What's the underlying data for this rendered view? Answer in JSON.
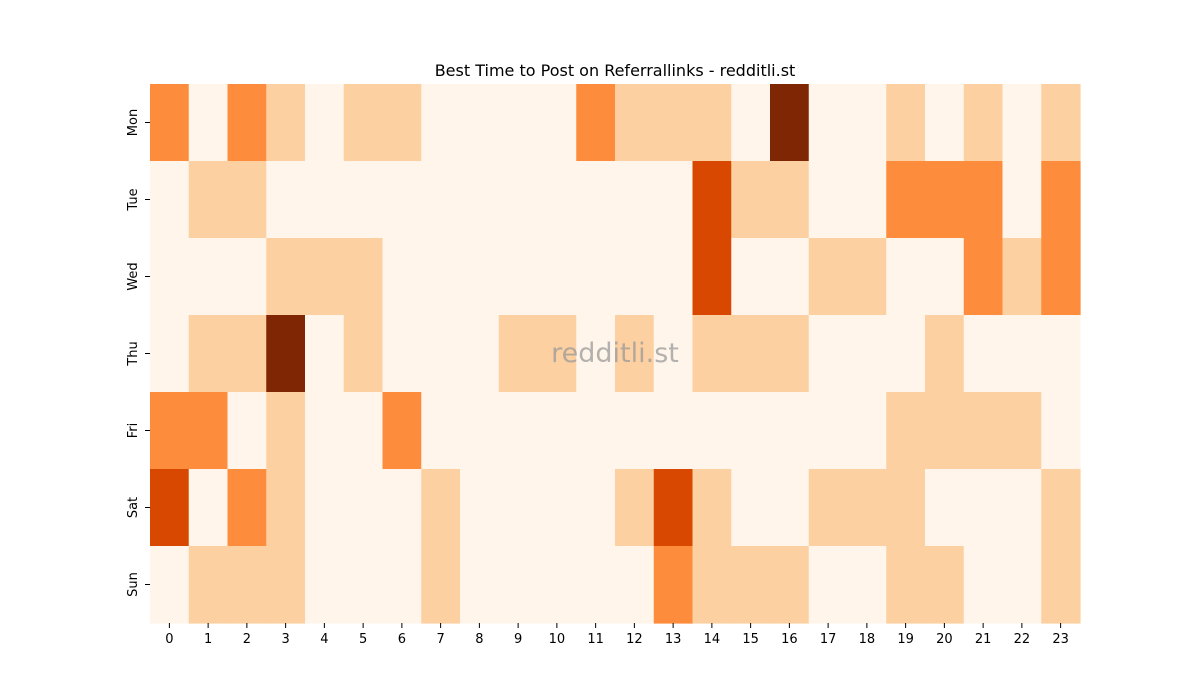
{
  "chart_data": {
    "type": "heatmap",
    "title": "Best Time to Post on Referrallinks - redditli.st",
    "watermark": "redditli.st",
    "xlabel": "",
    "ylabel": "",
    "x": [
      "0",
      "1",
      "2",
      "3",
      "4",
      "5",
      "6",
      "7",
      "8",
      "9",
      "10",
      "11",
      "12",
      "13",
      "14",
      "15",
      "16",
      "17",
      "18",
      "19",
      "20",
      "21",
      "22",
      "23"
    ],
    "y": [
      "Mon",
      "Tue",
      "Wed",
      "Thu",
      "Fri",
      "Sat",
      "Sun"
    ],
    "values": [
      [
        2,
        0,
        2,
        1,
        0,
        1,
        1,
        0,
        0,
        0,
        0,
        2,
        1,
        1,
        1,
        0,
        4,
        0,
        0,
        1,
        0,
        1,
        0,
        1
      ],
      [
        0,
        1,
        1,
        0,
        0,
        0,
        0,
        0,
        0,
        0,
        0,
        0,
        0,
        0,
        3,
        1,
        1,
        0,
        0,
        2,
        2,
        2,
        0,
        2
      ],
      [
        0,
        0,
        0,
        1,
        1,
        1,
        0,
        0,
        0,
        0,
        0,
        0,
        0,
        0,
        3,
        0,
        0,
        1,
        1,
        0,
        0,
        2,
        1,
        2
      ],
      [
        0,
        1,
        1,
        4,
        0,
        1,
        0,
        0,
        0,
        1,
        1,
        0,
        1,
        0,
        1,
        1,
        1,
        0,
        0,
        0,
        1,
        0,
        0,
        0
      ],
      [
        2,
        2,
        0,
        1,
        0,
        0,
        2,
        0,
        0,
        0,
        0,
        0,
        0,
        0,
        0,
        0,
        0,
        0,
        0,
        1,
        1,
        1,
        1,
        0
      ],
      [
        3,
        0,
        2,
        1,
        0,
        0,
        0,
        1,
        0,
        0,
        0,
        0,
        1,
        3,
        1,
        0,
        0,
        1,
        1,
        1,
        0,
        0,
        0,
        1
      ],
      [
        0,
        1,
        1,
        1,
        0,
        0,
        0,
        1,
        0,
        0,
        0,
        0,
        0,
        2,
        1,
        1,
        1,
        0,
        0,
        1,
        1,
        0,
        0,
        1
      ]
    ],
    "colors": [
      "#fff5eb",
      "#fdd0a2",
      "#fd8d3c",
      "#d94801",
      "#7f2704"
    ],
    "grid": false,
    "legend": "none"
  }
}
